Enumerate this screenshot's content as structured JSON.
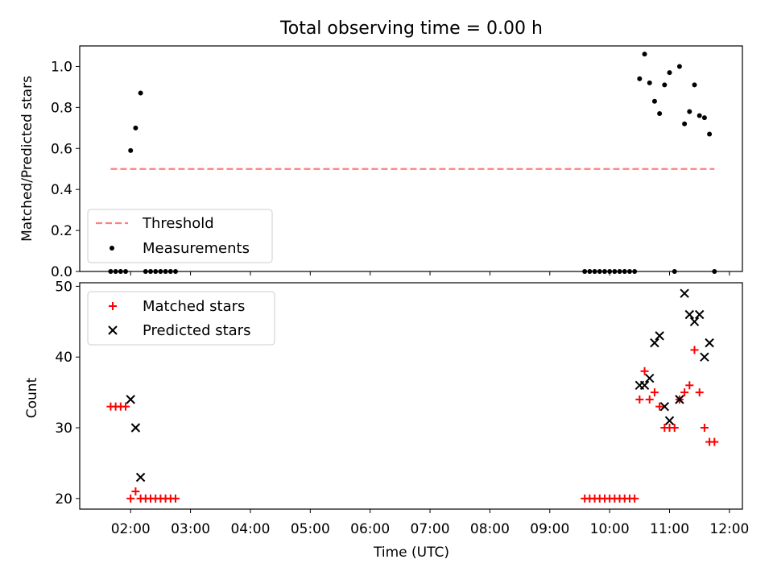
{
  "chart_data": [
    {
      "type": "scatter",
      "title": "Total observing time = 0.00 h",
      "xlabel": "",
      "ylabel": "Matched/Predicted stars",
      "ylim": [
        0,
        1.1
      ],
      "yticks": [
        "0.0",
        "0.2",
        "0.4",
        "0.6",
        "0.8",
        "1.0"
      ],
      "ytick_values": [
        0,
        0.2,
        0.4,
        0.6,
        0.8,
        1.0
      ],
      "legend_position": "lower-left",
      "threshold": {
        "name": "Threshold",
        "value": 0.5,
        "x_start": "01:40",
        "x_end": "11:45",
        "color": "#ff7f7f"
      },
      "series": [
        {
          "name": "Measurements",
          "color": "#000000",
          "points": [
            [
              "01:40",
              0.0
            ],
            [
              "01:45",
              0.0
            ],
            [
              "01:50",
              0.0
            ],
            [
              "01:55",
              0.0
            ],
            [
              "02:00",
              0.59
            ],
            [
              "02:05",
              0.7
            ],
            [
              "02:10",
              0.87
            ],
            [
              "02:15",
              0.0
            ],
            [
              "02:20",
              0.0
            ],
            [
              "02:25",
              0.0
            ],
            [
              "02:30",
              0.0
            ],
            [
              "02:35",
              0.0
            ],
            [
              "02:40",
              0.0
            ],
            [
              "02:45",
              0.0
            ],
            [
              "09:35",
              0.0
            ],
            [
              "09:40",
              0.0
            ],
            [
              "09:45",
              0.0
            ],
            [
              "09:50",
              0.0
            ],
            [
              "09:55",
              0.0
            ],
            [
              "10:00",
              0.0
            ],
            [
              "10:05",
              0.0
            ],
            [
              "10:10",
              0.0
            ],
            [
              "10:15",
              0.0
            ],
            [
              "10:20",
              0.0
            ],
            [
              "10:25",
              0.0
            ],
            [
              "10:30",
              0.94
            ],
            [
              "10:35",
              1.06
            ],
            [
              "10:40",
              0.92
            ],
            [
              "10:45",
              0.83
            ],
            [
              "10:50",
              0.77
            ],
            [
              "10:55",
              0.91
            ],
            [
              "11:00",
              0.97
            ],
            [
              "11:05",
              0.0
            ],
            [
              "11:10",
              1.0
            ],
            [
              "11:15",
              0.72
            ],
            [
              "11:20",
              0.78
            ],
            [
              "11:25",
              0.91
            ],
            [
              "11:30",
              0.76
            ],
            [
              "11:35",
              0.75
            ],
            [
              "11:40",
              0.67
            ],
            [
              "11:45",
              0.0
            ]
          ]
        }
      ]
    },
    {
      "type": "scatter",
      "title": "",
      "xlabel": "Time (UTC)",
      "ylabel": "Count",
      "ylim": [
        18.5,
        50.5
      ],
      "yticks": [
        "20",
        "30",
        "40",
        "50"
      ],
      "ytick_values": [
        20,
        30,
        40,
        50
      ],
      "xticks": [
        "02:00",
        "03:00",
        "04:00",
        "05:00",
        "06:00",
        "07:00",
        "08:00",
        "09:00",
        "10:00",
        "11:00",
        "12:00"
      ],
      "xlim": [
        "01:09",
        "12:13"
      ],
      "legend_position": "upper-left",
      "series": [
        {
          "name": "Matched stars",
          "marker": "plus",
          "color": "#ff0000",
          "points": [
            [
              "01:40",
              33
            ],
            [
              "01:45",
              33
            ],
            [
              "01:50",
              33
            ],
            [
              "01:55",
              33
            ],
            [
              "02:00",
              20
            ],
            [
              "02:05",
              21
            ],
            [
              "02:10",
              20
            ],
            [
              "02:15",
              20
            ],
            [
              "02:20",
              20
            ],
            [
              "02:25",
              20
            ],
            [
              "02:30",
              20
            ],
            [
              "02:35",
              20
            ],
            [
              "02:40",
              20
            ],
            [
              "02:45",
              20
            ],
            [
              "09:35",
              20
            ],
            [
              "09:40",
              20
            ],
            [
              "09:45",
              20
            ],
            [
              "09:50",
              20
            ],
            [
              "09:55",
              20
            ],
            [
              "10:00",
              20
            ],
            [
              "10:05",
              20
            ],
            [
              "10:10",
              20
            ],
            [
              "10:15",
              20
            ],
            [
              "10:20",
              20
            ],
            [
              "10:25",
              20
            ],
            [
              "10:30",
              34
            ],
            [
              "10:35",
              38
            ],
            [
              "10:40",
              34
            ],
            [
              "10:45",
              35
            ],
            [
              "10:50",
              33
            ],
            [
              "10:55",
              30
            ],
            [
              "11:00",
              30
            ],
            [
              "11:05",
              30
            ],
            [
              "11:10",
              34
            ],
            [
              "11:15",
              35
            ],
            [
              "11:20",
              36
            ],
            [
              "11:25",
              41
            ],
            [
              "11:30",
              35
            ],
            [
              "11:35",
              30
            ],
            [
              "11:40",
              28
            ],
            [
              "11:45",
              28
            ]
          ]
        },
        {
          "name": "Predicted stars",
          "marker": "x",
          "color": "#000000",
          "points": [
            [
              "02:00",
              34
            ],
            [
              "02:05",
              30
            ],
            [
              "02:10",
              23
            ],
            [
              "10:30",
              36
            ],
            [
              "10:35",
              36
            ],
            [
              "10:40",
              37
            ],
            [
              "10:45",
              42
            ],
            [
              "10:50",
              43
            ],
            [
              "10:55",
              33
            ],
            [
              "11:00",
              31
            ],
            [
              "11:10",
              34
            ],
            [
              "11:15",
              49
            ],
            [
              "11:20",
              46
            ],
            [
              "11:25",
              45
            ],
            [
              "11:30",
              46
            ],
            [
              "11:35",
              40
            ],
            [
              "11:40",
              42
            ]
          ]
        }
      ]
    }
  ]
}
